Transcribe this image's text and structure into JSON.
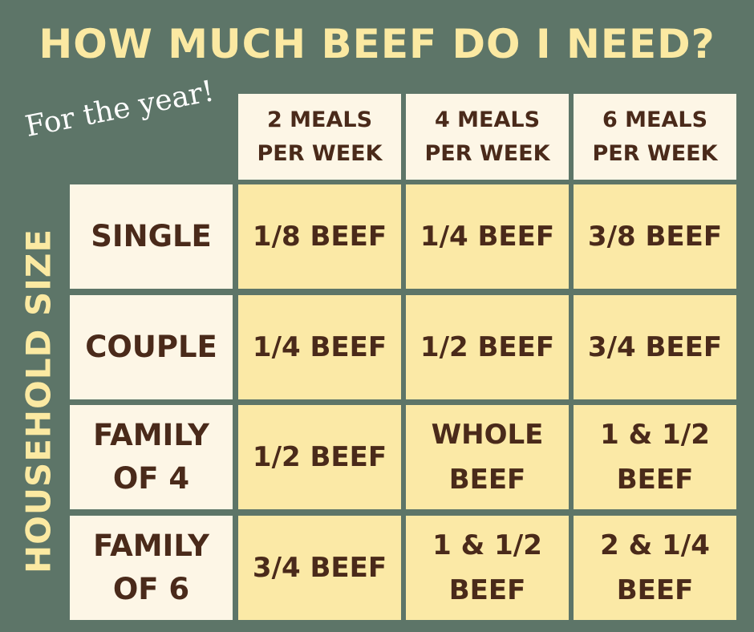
{
  "title": "HOW MUCH BEEF DO I NEED?",
  "subtitle": "For the year!",
  "side_label": "HOUSEHOLD SIZE",
  "columns": [
    "2 MEALS\nPER WEEK",
    "4 MEALS\nPER WEEK",
    "6 MEALS\nPER WEEK"
  ],
  "rows": [
    {
      "label": "SINGLE",
      "values": [
        "1/8 BEEF",
        "1/4 BEEF",
        "3/8 BEEF"
      ]
    },
    {
      "label": "COUPLE",
      "values": [
        "1/4 BEEF",
        "1/2 BEEF",
        "3/4 BEEF"
      ]
    },
    {
      "label": "FAMILY\nOF 4",
      "values": [
        "1/2 BEEF",
        "WHOLE\nBEEF",
        "1 & 1/2\nBEEF"
      ]
    },
    {
      "label": "FAMILY\nOF 6",
      "values": [
        "3/4 BEEF",
        "1 & 1/2\nBEEF",
        "2 & 1/4\nBEEF"
      ]
    }
  ],
  "colors": {
    "background": "#5d7568",
    "title": "#fbe9a2",
    "header_cell": "#fdf6e6",
    "value_cell": "#fbe9a6",
    "text": "#4a2a1a"
  }
}
